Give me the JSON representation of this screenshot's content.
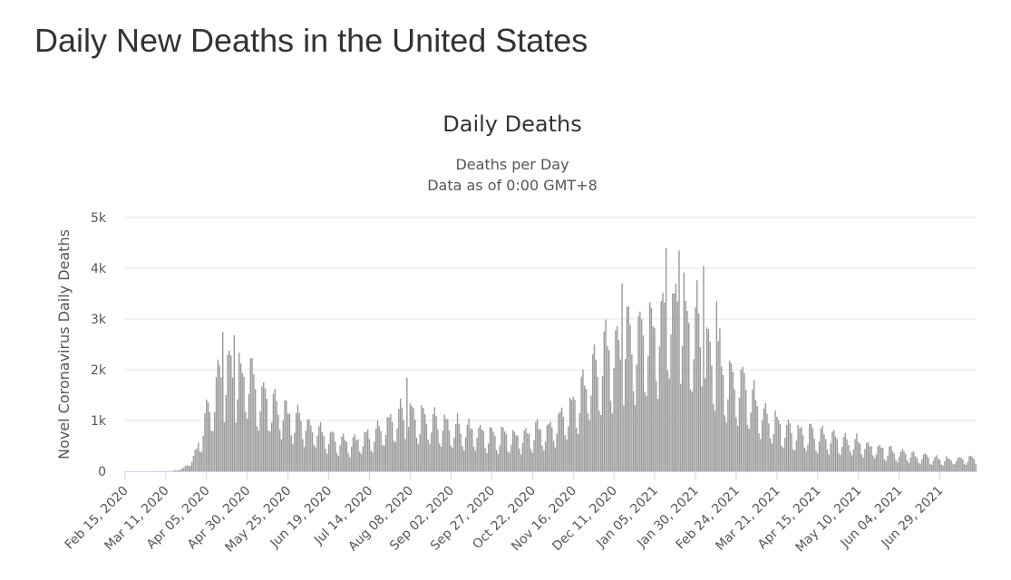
{
  "page": {
    "heading": "Daily New Deaths in the United States"
  },
  "colors": {
    "bar": "#999999",
    "grid": "#e6e6e6",
    "axis": "#ccd6eb",
    "text": "#333333"
  },
  "chart_data": {
    "type": "bar",
    "title": "Daily Deaths",
    "subtitle_line1": "Deaths per Day",
    "subtitle_line2": "Data as of 0:00 GMT+8",
    "ylabel": "Novel Coronavirus Daily Deaths",
    "xlabel": "",
    "ylim": [
      0,
      5000
    ],
    "grid": true,
    "legend": "none",
    "y_ticks": [
      {
        "value": 0,
        "label": "0"
      },
      {
        "value": 1000,
        "label": "1k"
      },
      {
        "value": 2000,
        "label": "2k"
      },
      {
        "value": 3000,
        "label": "3k"
      },
      {
        "value": 4000,
        "label": "4k"
      },
      {
        "value": 5000,
        "label": "5k"
      }
    ],
    "x_tick_labels": [
      "Feb 15, 2020",
      "Mar 11, 2020",
      "Apr 05, 2020",
      "Apr 30, 2020",
      "May 25, 2020",
      "Jun 19, 2020",
      "Jul 14, 2020",
      "Aug 08, 2020",
      "Sep 02, 2020",
      "Sep 27, 2020",
      "Oct 22, 2020",
      "Nov 16, 2020",
      "Dec 11, 2020",
      "Jan 05, 2021",
      "Jan 30, 2021",
      "Feb 24, 2021",
      "Mar 21, 2021",
      "Apr 15, 2021",
      "May 10, 2021",
      "Jun 04, 2021",
      "Jun 29, 2021"
    ],
    "first_date": "2020-02-15",
    "tick_step_days": 25,
    "weekly_pattern": [
      1.08,
      1.12,
      1.0,
      0.88,
      0.55,
      0.48,
      0.72
    ],
    "series": [
      {
        "name": "",
        "monthly_profile": [
          {
            "date": "2020-02-15",
            "value": 0
          },
          {
            "date": "2020-03-01",
            "value": 0
          },
          {
            "date": "2020-03-15",
            "value": 5
          },
          {
            "date": "2020-03-22",
            "value": 60
          },
          {
            "date": "2020-03-29",
            "value": 350
          },
          {
            "date": "2020-04-05",
            "value": 1200
          },
          {
            "date": "2020-04-12",
            "value": 2000
          },
          {
            "date": "2020-04-19",
            "value": 2150
          },
          {
            "date": "2020-04-26",
            "value": 2050
          },
          {
            "date": "2020-05-03",
            "value": 1900
          },
          {
            "date": "2020-05-10",
            "value": 1600
          },
          {
            "date": "2020-05-24",
            "value": 1250
          },
          {
            "date": "2020-06-07",
            "value": 1000
          },
          {
            "date": "2020-06-21",
            "value": 730
          },
          {
            "date": "2020-07-05",
            "value": 620
          },
          {
            "date": "2020-07-19",
            "value": 880
          },
          {
            "date": "2020-08-02",
            "value": 1170
          },
          {
            "date": "2020-08-16",
            "value": 1100
          },
          {
            "date": "2020-09-01",
            "value": 980
          },
          {
            "date": "2020-09-15",
            "value": 870
          },
          {
            "date": "2020-10-01",
            "value": 780
          },
          {
            "date": "2020-10-15",
            "value": 760
          },
          {
            "date": "2020-11-01",
            "value": 900
          },
          {
            "date": "2020-11-15",
            "value": 1350
          },
          {
            "date": "2020-12-01",
            "value": 2300
          },
          {
            "date": "2020-12-15",
            "value": 2750
          },
          {
            "date": "2021-01-01",
            "value": 3050
          },
          {
            "date": "2021-01-12",
            "value": 3500
          },
          {
            "date": "2021-01-20",
            "value": 3450
          },
          {
            "date": "2021-02-01",
            "value": 3050
          },
          {
            "date": "2021-02-15",
            "value": 2250
          },
          {
            "date": "2021-03-01",
            "value": 1800
          },
          {
            "date": "2021-03-15",
            "value": 1150
          },
          {
            "date": "2021-04-01",
            "value": 850
          },
          {
            "date": "2021-04-15",
            "value": 760
          },
          {
            "date": "2021-05-01",
            "value": 680
          },
          {
            "date": "2021-05-15",
            "value": 560
          },
          {
            "date": "2021-06-01",
            "value": 420
          },
          {
            "date": "2021-06-15",
            "value": 320
          },
          {
            "date": "2021-07-01",
            "value": 250
          },
          {
            "date": "2021-07-15",
            "value": 260
          }
        ],
        "notable_points": [
          {
            "date": "2020-04-15",
            "value": 2750
          },
          {
            "date": "2020-04-22",
            "value": 2680
          },
          {
            "date": "2020-08-06",
            "value": 1840
          },
          {
            "date": "2020-12-16",
            "value": 3700
          },
          {
            "date": "2021-01-12",
            "value": 4400
          },
          {
            "date": "2021-01-20",
            "value": 4350
          },
          {
            "date": "2021-02-04",
            "value": 4050
          },
          {
            "date": "2021-02-12",
            "value": 3350
          }
        ]
      }
    ]
  }
}
